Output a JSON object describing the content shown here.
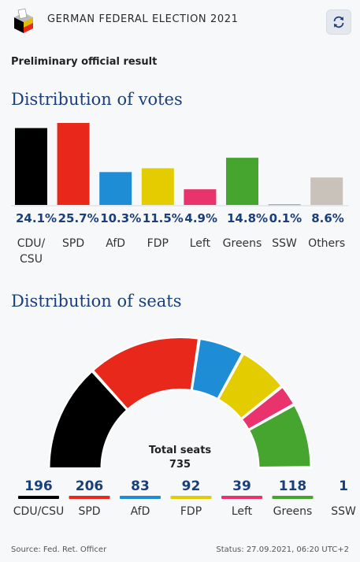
{
  "header": {
    "title": "GERMAN FEDERAL ELECTION 2021",
    "logo_icon": "ballot-box-icon",
    "refresh_icon": "refresh-icon"
  },
  "subtitle": "Preliminary official result",
  "votes_section": {
    "title": "Distribution of votes"
  },
  "seats_section": {
    "title": "Distribution of seats",
    "total_label": "Total seats",
    "total_value": "735"
  },
  "footer": {
    "source": "Source: Fed. Ret. Officer",
    "status": "Status: 27.09.2021, 06:20 UTC+2"
  },
  "chart_data": [
    {
      "type": "bar",
      "title": "Distribution of votes",
      "categories": [
        "CDU/\nCSU",
        "SPD",
        "AfD",
        "FDP",
        "Left",
        "Greens",
        "SSW",
        "Others"
      ],
      "values": [
        24.1,
        25.7,
        10.3,
        11.5,
        4.9,
        14.8,
        0.1,
        8.6
      ],
      "labels": [
        "24.1%",
        "25.7%",
        "10.3%",
        "11.5%",
        "4.9%",
        "14.8%",
        "0.1%",
        "8.6%"
      ],
      "colors": [
        "#000000",
        "#e8281a",
        "#1f8dd6",
        "#e3cc00",
        "#e8336d",
        "#45a52f",
        "#1b3f7a",
        "#c9c2ba"
      ],
      "ylim": [
        0,
        25.7
      ]
    },
    {
      "type": "pie",
      "subtype": "parliament-semicircle",
      "title": "Distribution of seats",
      "categories": [
        "CDU/CSU",
        "SPD",
        "AfD",
        "FDP",
        "Left",
        "Greens",
        "SSW"
      ],
      "values": [
        196,
        206,
        83,
        92,
        39,
        118,
        1
      ],
      "total": 735,
      "colors": [
        "#000000",
        "#e8281a",
        "#1f8dd6",
        "#e3cc00",
        "#e8336d",
        "#45a52f",
        "#1b3f7a"
      ]
    }
  ]
}
